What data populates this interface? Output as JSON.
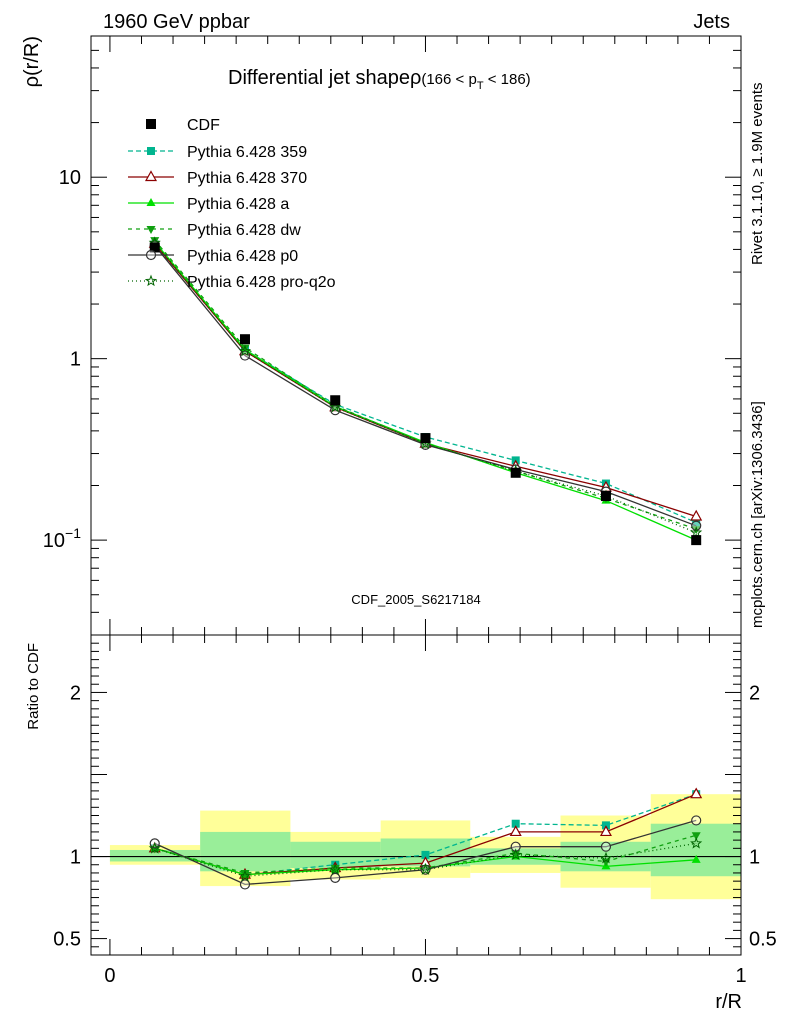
{
  "header": {
    "left": "1960 GeV ppbar",
    "right": "Jets"
  },
  "side_labels": {
    "rivet": "Rivet 3.1.10, ≥ 1.9M events",
    "mcplots": "mcplots.cern.ch [arXiv:1306.3436]"
  },
  "chart_data": {
    "type": "line",
    "title_main": "Differential jet shapeρ",
    "title_range": "(166 < p",
    "title_sub": "T",
    "title_end": " < 186)",
    "analysis_tag": "CDF_2005_S6217184",
    "ylabel": "ρ(r/R)",
    "ratio_ylabel": "Ratio to CDF",
    "xlabel": "r/R",
    "yscale": "log",
    "ylim": [
      0.03,
      60
    ],
    "ratio_ylim": [
      0.4,
      2.35
    ],
    "xlim": [
      -0.03,
      1.0
    ],
    "top_yticks": [
      {
        "v": 10,
        "base": "10",
        "exp": ""
      },
      {
        "v": 1,
        "base": "1",
        "exp": ""
      },
      {
        "v": 0.1,
        "base": "10",
        "exp": "−1"
      }
    ],
    "ratio_yticks": [
      {
        "v": 2,
        "label": "2"
      },
      {
        "v": 1,
        "label": "1"
      },
      {
        "v": 0.5,
        "label": "0.5"
      }
    ],
    "xticks": [
      {
        "v": 0,
        "label": "0"
      },
      {
        "v": 0.5,
        "label": "0.5"
      },
      {
        "v": 1,
        "label": "1"
      }
    ],
    "x": [
      0.071,
      0.214,
      0.357,
      0.5,
      0.643,
      0.786,
      0.929
    ],
    "bin_edges": [
      0.0,
      0.143,
      0.286,
      0.429,
      0.571,
      0.714,
      0.857,
      1.0
    ],
    "data": {
      "name": "CDF",
      "color": "#000000",
      "values": [
        4.1,
        1.28,
        0.59,
        0.365,
        0.235,
        0.175,
        0.1
      ]
    },
    "bands": {
      "yellow": [
        [
          0.95,
          1.07
        ],
        [
          0.82,
          1.28
        ],
        [
          0.86,
          1.15
        ],
        [
          0.87,
          1.22
        ],
        [
          0.9,
          1.12
        ],
        [
          0.81,
          1.25
        ],
        [
          0.74,
          1.38
        ]
      ],
      "green": [
        [
          0.97,
          1.04
        ],
        [
          0.91,
          1.15
        ],
        [
          0.93,
          1.09
        ],
        [
          0.94,
          1.11
        ],
        [
          0.95,
          1.05
        ],
        [
          0.91,
          1.09
        ],
        [
          0.88,
          1.2
        ]
      ]
    },
    "series": [
      {
        "name": "Pythia 6.428 359",
        "color": "#00b58f",
        "dash": "5,3",
        "marker": "square-filled",
        "values": [
          4.25,
          1.12,
          0.56,
          0.37,
          0.275,
          0.205,
          0.125
        ],
        "ratio": [
          1.05,
          0.89,
          0.95,
          1.01,
          1.2,
          1.19,
          1.38
        ]
      },
      {
        "name": "Pythia 6.428 370",
        "color": "#8b0000",
        "dash": "",
        "marker": "triangle-open",
        "values": [
          4.3,
          1.1,
          0.54,
          0.34,
          0.255,
          0.195,
          0.135
        ],
        "ratio": [
          1.05,
          0.89,
          0.93,
          0.96,
          1.15,
          1.15,
          1.38
        ]
      },
      {
        "name": "Pythia 6.428 a",
        "color": "#00e000",
        "dash": "",
        "marker": "triangle-filled",
        "values": [
          4.4,
          1.12,
          0.545,
          0.345,
          0.235,
          0.165,
          0.1
        ],
        "ratio": [
          1.05,
          0.89,
          0.92,
          0.93,
          1.0,
          0.94,
          0.98
        ]
      },
      {
        "name": "Pythia 6.428 dw",
        "color": "#10a010",
        "dash": "4,4",
        "marker": "triangle-down-filled",
        "values": [
          4.5,
          1.15,
          0.55,
          0.34,
          0.24,
          0.17,
          0.115
        ],
        "ratio": [
          1.05,
          0.9,
          0.93,
          0.93,
          1.02,
          0.97,
          1.13
        ]
      },
      {
        "name": "Pythia 6.428 p0",
        "color": "#333333",
        "dash": "",
        "marker": "circle-open",
        "values": [
          4.2,
          1.04,
          0.52,
          0.335,
          0.245,
          0.185,
          0.12
        ],
        "ratio": [
          1.08,
          0.83,
          0.87,
          0.92,
          1.06,
          1.06,
          1.22
        ]
      },
      {
        "name": "Pythia 6.428 pro-q2o",
        "color": "#006400",
        "dash": "1,3",
        "marker": "star-open",
        "values": [
          4.35,
          1.1,
          0.54,
          0.34,
          0.24,
          0.175,
          0.11
        ],
        "ratio": [
          1.05,
          0.88,
          0.92,
          0.92,
          1.01,
          0.99,
          1.08
        ]
      }
    ]
  }
}
